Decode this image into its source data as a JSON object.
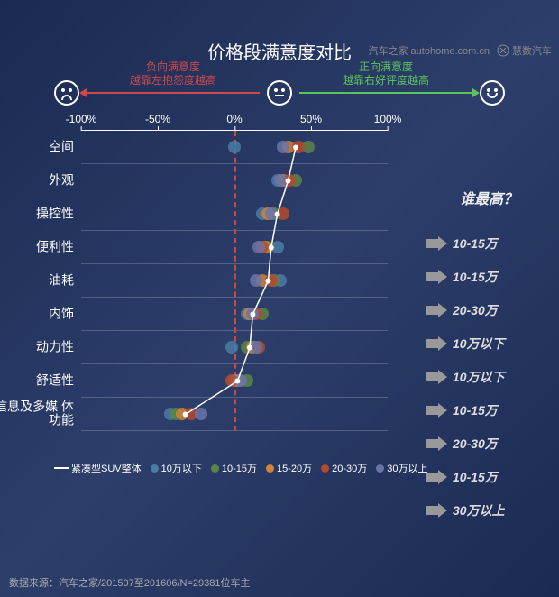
{
  "watermark": {
    "site": "汽车之家 autohome.com.cn",
    "brand": "慧数汽车"
  },
  "title": "价格段满意度对比",
  "header": {
    "neg_line1": "负向满意度",
    "neg_line2": "越靠左抱怨度越高",
    "pos_line1": "正向满意度",
    "pos_line2": "越靠右好评度越高"
  },
  "xaxis": {
    "ticks": [
      -100,
      -50,
      0,
      50,
      100
    ],
    "labels": [
      "-100%",
      "-50%",
      "0%",
      "50%",
      "100%"
    ]
  },
  "categories": [
    "空间",
    "外观",
    "操控性",
    "便利性",
    "油耗",
    "内饰",
    "动力性",
    "舒适性",
    "信息及多媒\n体功能"
  ],
  "side": {
    "title": "谁最高？",
    "values": [
      "10-15万",
      "10-15万",
      "20-30万",
      "10万以下",
      "10万以下",
      "10-15万",
      "20-30万",
      "10-15万",
      "30万以上"
    ]
  },
  "series": [
    {
      "name": "紧凑型SUV整体",
      "type": "line",
      "color": "#ffffff",
      "values": [
        40,
        35,
        28,
        24,
        22,
        12,
        10,
        2,
        -32
      ]
    },
    {
      "name": "10万以下",
      "color": "#4a7ba6",
      "values": [
        0,
        28,
        18,
        28,
        30,
        8,
        -2,
        0,
        -42
      ]
    },
    {
      "name": "10-15万",
      "color": "#5a8548",
      "values": [
        48,
        40,
        26,
        22,
        26,
        18,
        8,
        8,
        -38
      ]
    },
    {
      "name": "15-20万",
      "color": "#d1833a",
      "values": [
        35,
        32,
        22,
        20,
        18,
        10,
        12,
        2,
        -34
      ]
    },
    {
      "name": "20-30万",
      "color": "#b54a2e",
      "values": [
        42,
        36,
        32,
        18,
        24,
        14,
        16,
        -2,
        -28
      ]
    },
    {
      "name": "30万以上",
      "color": "#6a74a8",
      "values": [
        32,
        30,
        24,
        16,
        14,
        12,
        14,
        4,
        -22
      ]
    }
  ],
  "legend_colors": {
    "line": "#ffffff"
  },
  "footer": "数据来源：汽车之家/201507至201606/N=29381位车主",
  "colors": {
    "bg": "#1f3160",
    "neg": "#d04848",
    "pos": "#5bc45b"
  }
}
